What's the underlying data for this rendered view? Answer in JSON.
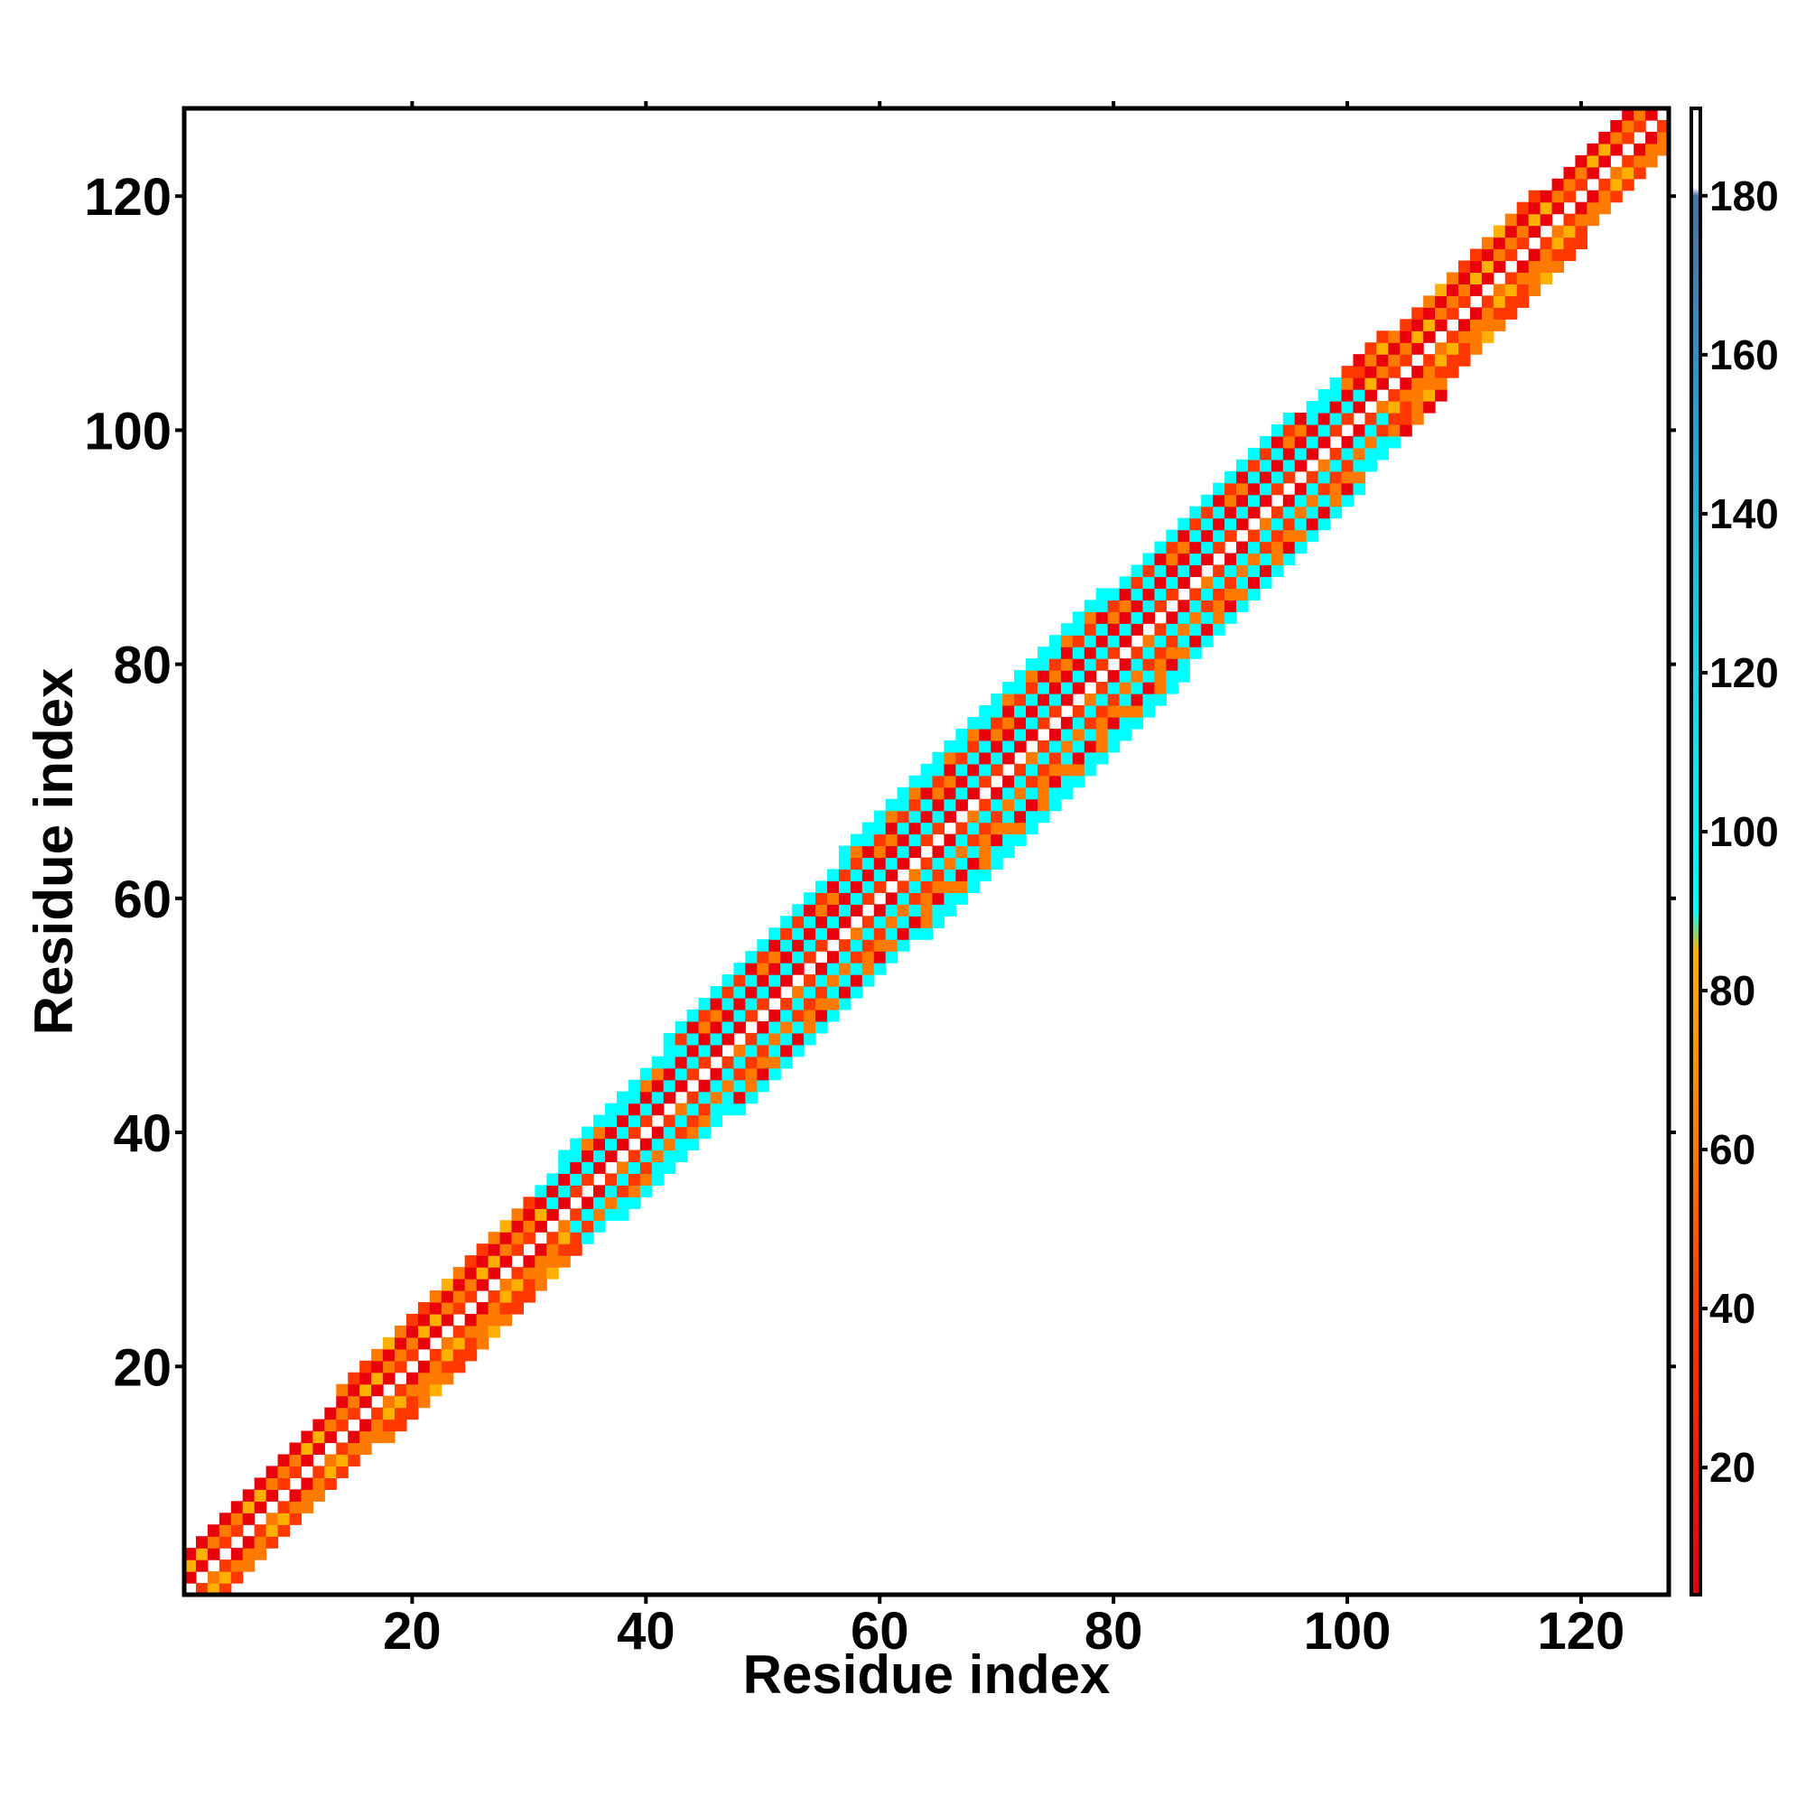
{
  "chart_data": {
    "type": "heatmap",
    "title": "",
    "xlabel": "Residue index",
    "ylabel": "Residue index",
    "xlim": [
      1,
      127
    ],
    "ylim": [
      1,
      127
    ],
    "xticks": [
      "20",
      "40",
      "60",
      "80",
      "100",
      "120"
    ],
    "yticks": [
      "20",
      "40",
      "60",
      "80",
      "100",
      "120"
    ],
    "grid": false,
    "matrix_size": 127,
    "structure": "symmetric banded matrix: values only within a band around the diagonal; diagonal itself blank (white); band half-width grows from about 3 residues near index 1 to about 7 residues near index 65 and narrows to about 3 near index 127; cyan (90-130) cells form the outer rim of the band between residues 33 and 102; red/orange (0-85) cells fill the core of the band",
    "band_halfwidth_profile": [
      {
        "residue": 1,
        "halfwidth": 3
      },
      {
        "residue": 30,
        "halfwidth": 4
      },
      {
        "residue": 50,
        "halfwidth": 6
      },
      {
        "residue": 70,
        "halfwidth": 7
      },
      {
        "residue": 95,
        "halfwidth": 6
      },
      {
        "residue": 110,
        "halfwidth": 4
      },
      {
        "residue": 127,
        "halfwidth": 3
      }
    ],
    "cyan_rim_range": [
      33,
      102
    ],
    "colorbar": {
      "min": 4,
      "max": 191,
      "ticks": [
        "20",
        "40",
        "60",
        "80",
        "100",
        "120",
        "140",
        "160",
        "180"
      ],
      "stops": [
        {
          "value": 4,
          "color": "#e8000b"
        },
        {
          "value": 40,
          "color": "#ff3800"
        },
        {
          "value": 60,
          "color": "#ff7a00"
        },
        {
          "value": 85,
          "color": "#ffb000"
        },
        {
          "value": 90,
          "color": "#00ffff"
        },
        {
          "value": 120,
          "color": "#19d4e6"
        },
        {
          "value": 150,
          "color": "#2aa0cf"
        },
        {
          "value": 180,
          "color": "#4a70aa"
        },
        {
          "value": 181,
          "color": "#ffffff"
        },
        {
          "value": 191,
          "color": "#ffffff"
        }
      ]
    }
  }
}
